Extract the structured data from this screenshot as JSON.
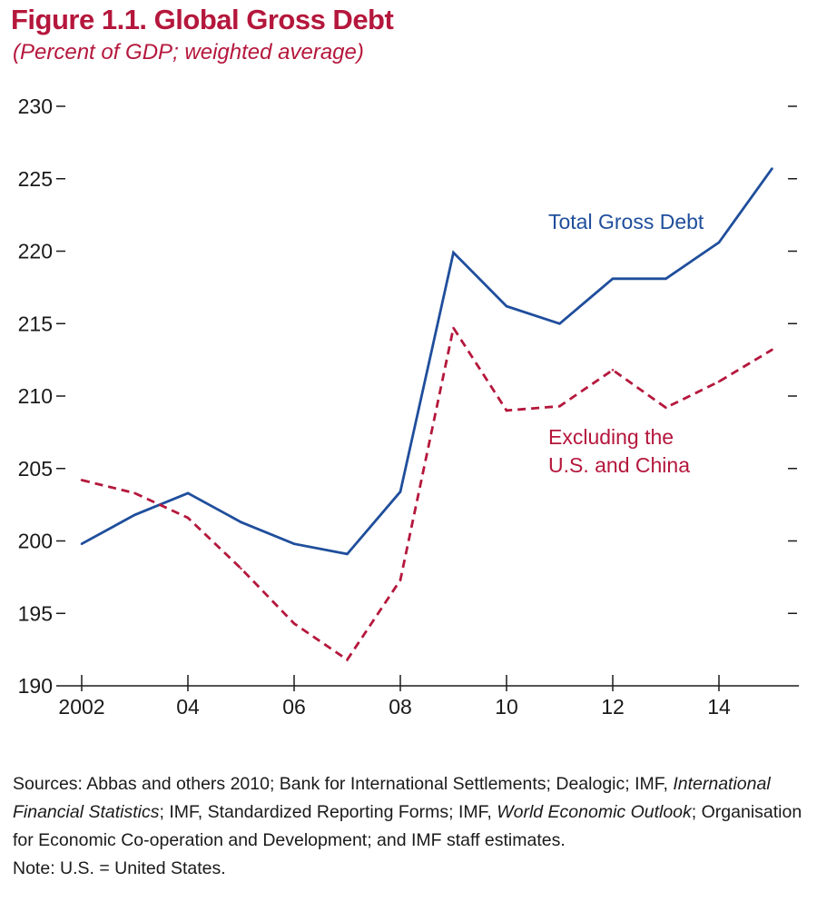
{
  "title": "Figure 1.1. Global Gross Debt",
  "subtitle": "(Percent of GDP; weighted average)",
  "colors": {
    "title": "#b5173c",
    "total_series": "#1f4e9c",
    "excluding_series": "#b5173c",
    "axis": "#1a1a1a"
  },
  "chart_data": {
    "type": "line",
    "x": [
      2002,
      2003,
      2004,
      2005,
      2006,
      2007,
      2008,
      2009,
      2010,
      2011,
      2012,
      2013,
      2014,
      2015
    ],
    "x_tick_values": [
      2002,
      2004,
      2006,
      2008,
      2010,
      2012,
      2014
    ],
    "x_tick_labels": [
      "2002",
      "04",
      "06",
      "08",
      "10",
      "12",
      "14"
    ],
    "y_ticks": [
      190,
      195,
      200,
      205,
      210,
      215,
      220,
      225,
      230
    ],
    "y_tick_labels": [
      "190",
      "195",
      "200",
      "205",
      "210",
      "215",
      "220",
      "225",
      "230"
    ],
    "ylim": [
      190,
      230
    ],
    "xlim": [
      2002,
      2015.5
    ],
    "grid": false,
    "series": [
      {
        "name": "Total Gross Debt",
        "style": "solid",
        "color": "#1f4e9c",
        "values": [
          199.8,
          201.8,
          203.3,
          201.3,
          199.8,
          199.1,
          203.4,
          219.9,
          216.2,
          215.0,
          218.1,
          218.1,
          220.6,
          225.7
        ]
      },
      {
        "name": "Excluding the U.S. and China",
        "label_lines": [
          "Excluding the",
          "U.S. and China"
        ],
        "style": "dashed",
        "color": "#b5173c",
        "values": [
          204.2,
          203.3,
          201.6,
          198.1,
          194.3,
          191.8,
          197.3,
          214.7,
          209.0,
          209.3,
          211.8,
          209.2,
          211.0,
          213.2
        ]
      }
    ]
  },
  "notes": {
    "sources": [
      {
        "text": "Sources: Abbas and others 2010; Bank for International Settlements; Dealogic; IMF, ",
        "italic": false
      },
      {
        "text": "International Financial Statistics",
        "italic": true
      },
      {
        "text": "; IMF, Standardized Reporting Forms; IMF, ",
        "italic": false
      },
      {
        "text": "World Economic Outlook",
        "italic": true
      },
      {
        "text": "; Organisation for Economic Co-operation and Development; and IMF staff estimates.",
        "italic": false
      }
    ],
    "note": "Note: U.S. = United States."
  }
}
